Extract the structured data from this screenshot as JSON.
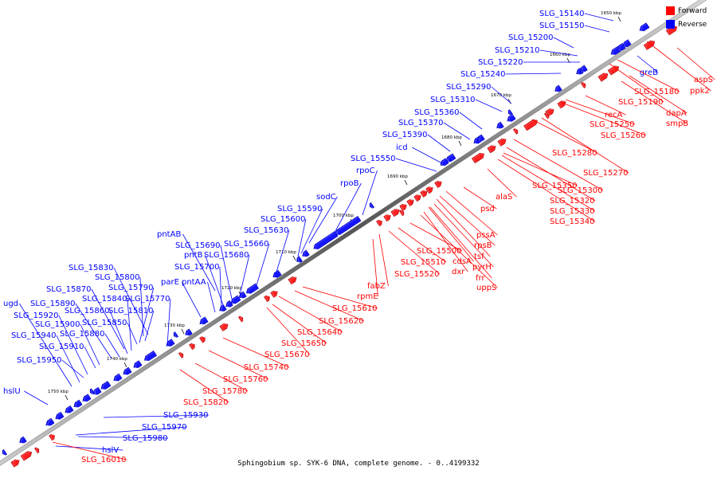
{
  "legend": {
    "forward_label": "Forward",
    "reverse_label": "Reverse",
    "forward_color": "#ff0000",
    "reverse_color": "#0000ff"
  },
  "caption": "Sphingobium sp. SYK-6 DNA, complete genome. - 0..4199332",
  "ticks": [
    "1650 kbp",
    "1660 kbp",
    "1670 kbp",
    "1680 kbp",
    "1690 kbp",
    "1700 kbp",
    "1710 kbp",
    "1720 kbp",
    "1730 kbp",
    "1740 kbp",
    "1750 kbp"
  ],
  "reverse_genes": [
    "SLG_15140",
    "SLG_15150",
    "SLG_15200",
    "SLG_15210",
    "SLG_15220",
    "SLG_15240",
    "greB",
    "SLG_15290",
    "SLG_15310",
    "SLG_15360",
    "SLG_15370",
    "SLG_15390",
    "icd",
    "SLG_15550",
    "rpoC",
    "rpoB",
    "sodC",
    "SLG_15590",
    "SLG_15600",
    "SLG_15630",
    "pntAB",
    "SLG_15660",
    "SLG_15690",
    "pntB",
    "SLG_15680",
    "SLG_15700",
    "SLG_15830",
    "SLG_15800",
    "parE",
    "pntAA",
    "SLG_15870",
    "SLG_15790",
    "ugd",
    "SLG_15890",
    "SLG_15840",
    "SLG_15770",
    "SLG_15860",
    "SLG_15810",
    "SLG_15920",
    "SLG_15900",
    "SLG_15850",
    "SLG_15940",
    "SLG_15880",
    "SLG_15910",
    "SLG_15950",
    "hslU",
    "SLG_15930",
    "SLG_15970",
    "SLG_15980",
    "hslV"
  ],
  "forward_genes": [
    "aspS",
    "ppk2",
    "SLG_15180",
    "SLG_15190",
    "dapA",
    "smpB",
    "recA",
    "SLG_15250",
    "SLG_15260",
    "SLG_15280",
    "SLG_15270",
    "alaS",
    "SLG_15350",
    "SLG_15300",
    "SLG_15320",
    "SLG_15330",
    "SLG_15340",
    "psd",
    "pssA",
    "rpsB",
    "tsf",
    "cdsA",
    "pyrH",
    "SLG_15500",
    "frr",
    "dxr",
    "uppS",
    "SLG_15510",
    "SLG_15520",
    "fabZ",
    "rpmE",
    "SLG_15610",
    "SLG_15620",
    "SLG_15640",
    "SLG_15650",
    "SLG_15670",
    "SLG_15740",
    "SLG_15760",
    "SLG_15780",
    "SLG_15820",
    "SLG_16010"
  ]
}
